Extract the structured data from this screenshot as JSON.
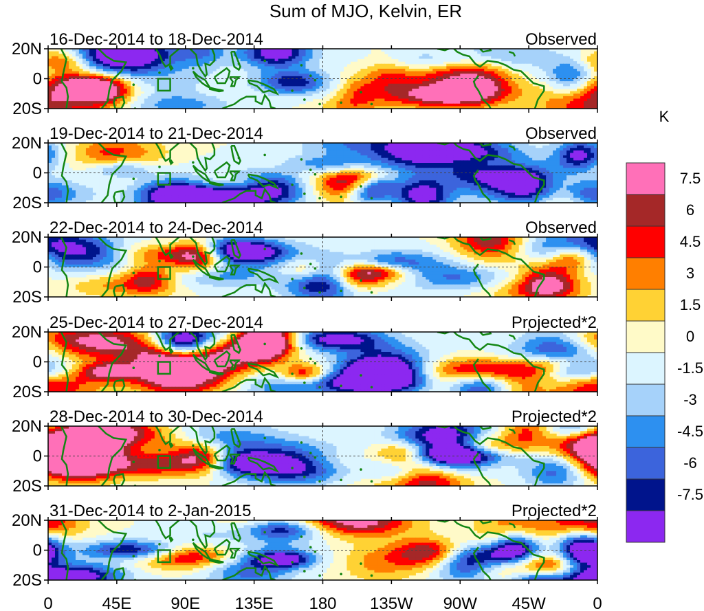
{
  "chart_data": {
    "type": "heatmap",
    "title": "Sum of MJO, Kelvin, ER",
    "units": "K",
    "lat_range": [
      -20,
      20
    ],
    "lon_range": [
      0,
      360
    ],
    "y_ticks": [
      "20N",
      "0",
      "20S"
    ],
    "x_ticks": [
      "0",
      "45E",
      "90E",
      "135E",
      "180",
      "135W",
      "90W",
      "45W",
      "0"
    ],
    "panels": [
      {
        "date_range": "16-Dec-2014 to 18-Dec-2014",
        "label": "Observed"
      },
      {
        "date_range": "19-Dec-2014 to 21-Dec-2014",
        "label": "Observed"
      },
      {
        "date_range": "22-Dec-2014 to 24-Dec-2014",
        "label": "Observed"
      },
      {
        "date_range": "25-Dec-2014 to 27-Dec-2014",
        "label": "Projected*2"
      },
      {
        "date_range": "28-Dec-2014 to 30-Dec-2014",
        "label": "Projected*2"
      },
      {
        "date_range": "31-Dec-2014 to 2-Jan-2015",
        "label": "Projected*2"
      }
    ],
    "colorbar": {
      "levels": [
        "7.5",
        "6",
        "4.5",
        "3",
        "1.5",
        "0",
        "-1.5",
        "-3",
        "-4.5",
        "-6",
        "-7.5"
      ],
      "colors": [
        "#ff70b8",
        "#a52828",
        "#ff0000",
        "#ff7f00",
        "#ffd234",
        "#fffac8",
        "#dcf5ff",
        "#a6d2fa",
        "#2d90f0",
        "#3c64dc",
        "#00148c",
        "#8c28f0"
      ]
    },
    "map_color": "#138613"
  }
}
